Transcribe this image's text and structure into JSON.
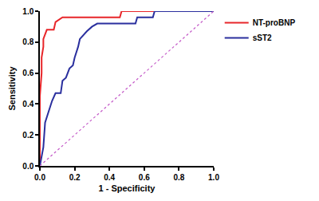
{
  "chart_data": {
    "type": "line",
    "x_label": "1 - Specificity",
    "y_label": "Sensitivity",
    "xlim": [
      0,
      1
    ],
    "ylim": [
      0,
      1
    ],
    "xticks": [
      {
        "value": 0,
        "label": "0.0"
      },
      0.2,
      0.4,
      0.6,
      0.8,
      {
        "value": 1,
        "label": "1.0"
      }
    ],
    "yticks": [
      {
        "value": 0,
        "label": "0.0"
      },
      0.2,
      0.4,
      0.6,
      0.8,
      {
        "value": 1,
        "label": "1.0"
      }
    ],
    "grid": false,
    "legend": "right",
    "series": [
      {
        "name": "NT-proBNP",
        "color": "#e8262a",
        "line_style": "solid",
        "x": [
          0,
          0,
          0.01,
          0.01,
          0.02,
          0.02,
          0.04,
          0.08,
          0.09,
          0.13,
          0.46,
          0.47,
          1.0
        ],
        "values": [
          0,
          0.45,
          0.6,
          0.7,
          0.77,
          0.82,
          0.88,
          0.88,
          0.93,
          0.96,
          0.96,
          1.0,
          1.0
        ]
      },
      {
        "name": "sST2",
        "color": "#2a2f9e",
        "line_style": "solid",
        "x": [
          0,
          0.02,
          0.03,
          0.05,
          0.07,
          0.09,
          0.12,
          0.13,
          0.15,
          0.17,
          0.19,
          0.2,
          0.22,
          0.23,
          0.27,
          0.3,
          0.33,
          0.55,
          0.56,
          0.65,
          0.66,
          1.0
        ],
        "values": [
          0,
          0.12,
          0.28,
          0.35,
          0.42,
          0.47,
          0.47,
          0.55,
          0.57,
          0.63,
          0.65,
          0.7,
          0.77,
          0.82,
          0.87,
          0.9,
          0.92,
          0.92,
          0.96,
          0.96,
          1.0,
          1.0
        ]
      },
      {
        "color": "#c45ac8",
        "line_style": "dotted",
        "x": [
          0,
          1
        ],
        "values": [
          0,
          1
        ]
      }
    ]
  }
}
